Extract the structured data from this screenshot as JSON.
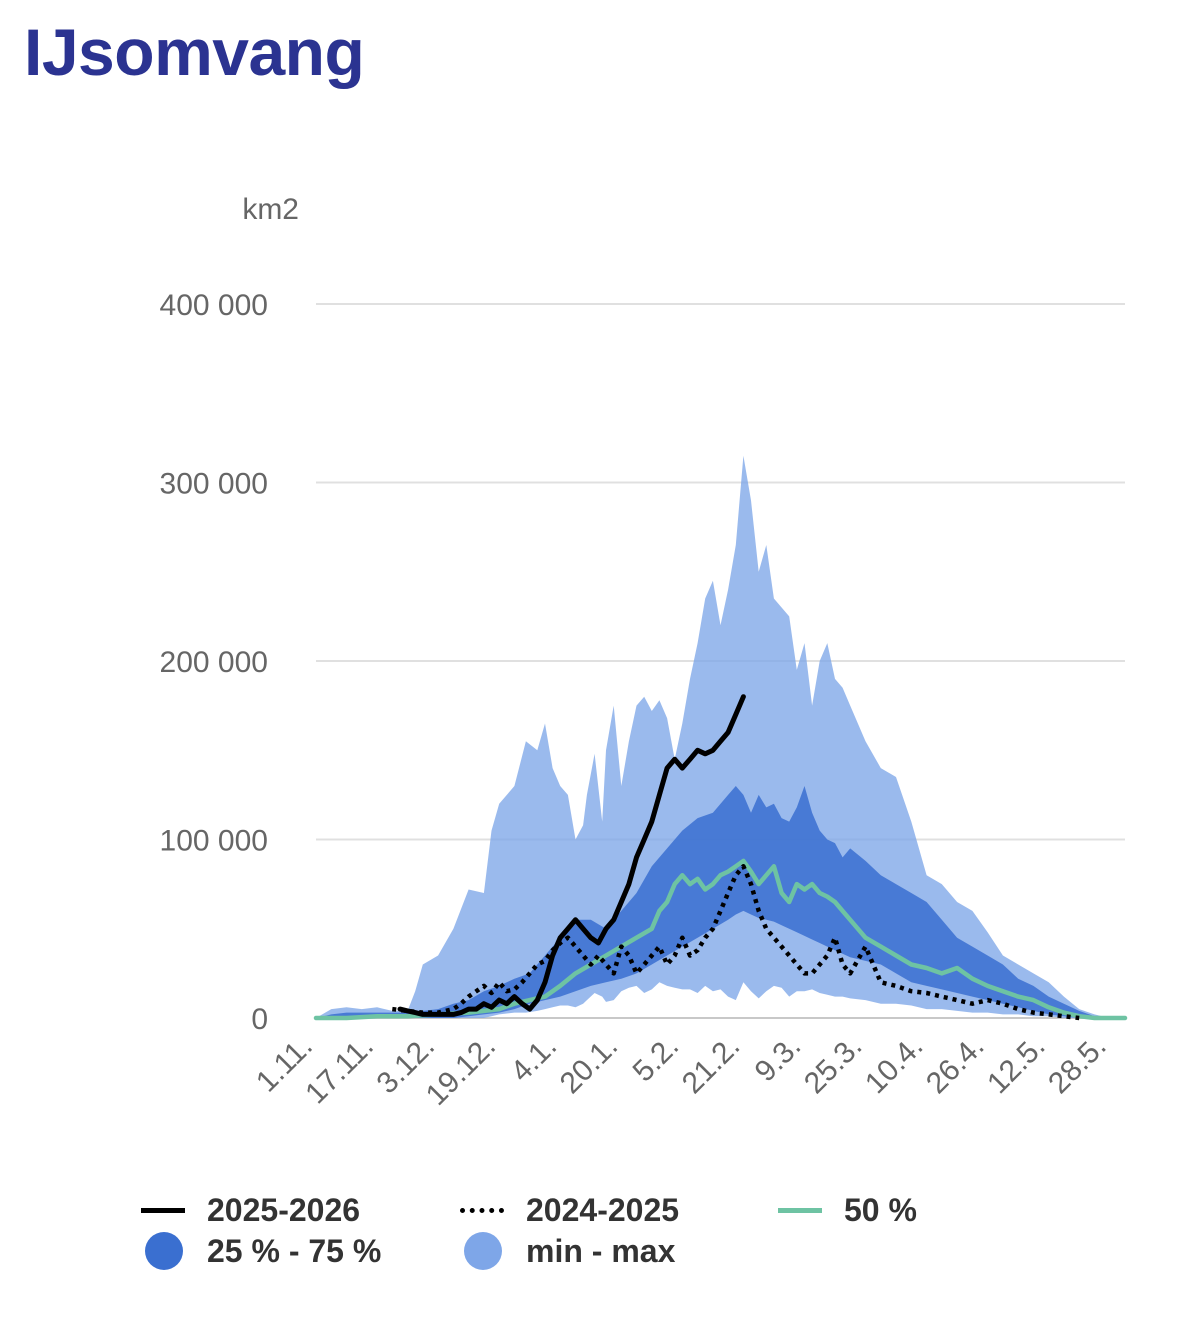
{
  "title": "IJsomvang",
  "colors": {
    "minmax": "#7ea6e8",
    "iqr": "#3a6fd0",
    "median": "#6ec3a3",
    "current": "#000000",
    "previous": "#000000",
    "grid": "#e0e0e0",
    "axis_text": "#666666",
    "title": "#2b3391"
  },
  "legend": {
    "current": "2025-2026",
    "previous": "2024-2025",
    "median": "50 %",
    "iqr": "25 % - 75 %",
    "minmax": "min - max"
  },
  "chart_data": {
    "type": "area",
    "ylabel": "km2",
    "ylim": [
      0,
      400000
    ],
    "yticks": [
      0,
      100000,
      200000,
      300000,
      400000
    ],
    "ytick_labels": [
      "0",
      "100 000",
      "200 000",
      "300 000",
      "400 000"
    ],
    "xlim": [
      0,
      212
    ],
    "xticks": [
      0,
      16,
      32,
      48,
      64,
      80,
      96,
      112,
      128,
      144,
      160,
      176,
      192,
      208
    ],
    "xtick_labels": [
      "1.11.",
      "17.11.",
      "3.12.",
      "19.12.",
      "4.1.",
      "20.1.",
      "5.2.",
      "21.2.",
      "9.3.",
      "25.3.",
      "10.4.",
      "26.4.",
      "12.5.",
      "28.5."
    ],
    "grid": true,
    "x_note": "x values are days counted from 1.11.",
    "series": [
      {
        "name": "min - max",
        "kind": "band",
        "x": [
          0,
          4,
          8,
          12,
          16,
          20,
          24,
          26,
          28,
          32,
          36,
          40,
          44,
          46,
          48,
          52,
          55,
          58,
          60,
          62,
          64,
          66,
          68,
          70,
          71,
          73,
          75,
          76,
          78,
          80,
          82,
          84,
          86,
          88,
          90,
          92,
          94,
          96,
          98,
          100,
          102,
          104,
          106,
          108,
          110,
          112,
          114,
          116,
          118,
          120,
          122,
          124,
          126,
          128,
          130,
          132,
          134,
          136,
          138,
          140,
          144,
          148,
          152,
          156,
          160,
          164,
          168,
          172,
          176,
          180,
          184,
          188,
          192,
          196,
          200,
          204,
          206,
          208,
          212
        ],
        "low": [
          0,
          0,
          0,
          0,
          0,
          0,
          0,
          0,
          0,
          0,
          0,
          0,
          0,
          1000,
          2000,
          3000,
          3000,
          4000,
          5000,
          6000,
          7000,
          7000,
          6000,
          8000,
          10000,
          14000,
          12000,
          9000,
          10000,
          15000,
          17000,
          18000,
          14000,
          16000,
          20000,
          18000,
          17000,
          16000,
          16000,
          14000,
          18000,
          15000,
          16000,
          12000,
          10000,
          20000,
          15000,
          11000,
          15000,
          18000,
          17000,
          12000,
          15000,
          15000,
          16000,
          14000,
          13000,
          12000,
          12000,
          11000,
          10000,
          8000,
          8000,
          7000,
          5000,
          5000,
          4000,
          3000,
          3000,
          2000,
          2000,
          1000,
          1000,
          0,
          0,
          0,
          0,
          0,
          0
        ],
        "high": [
          0,
          5000,
          6000,
          5000,
          6000,
          4000,
          4000,
          15000,
          30000,
          35000,
          50000,
          72000,
          70000,
          105000,
          120000,
          130000,
          155000,
          150000,
          165000,
          140000,
          130000,
          125000,
          100000,
          108000,
          125000,
          148000,
          110000,
          150000,
          175000,
          130000,
          155000,
          175000,
          180000,
          172000,
          178000,
          168000,
          145000,
          165000,
          190000,
          210000,
          235000,
          245000,
          220000,
          240000,
          265000,
          315000,
          290000,
          250000,
          265000,
          235000,
          230000,
          225000,
          195000,
          210000,
          175000,
          200000,
          210000,
          190000,
          185000,
          175000,
          155000,
          140000,
          135000,
          110000,
          80000,
          75000,
          65000,
          60000,
          48000,
          35000,
          30000,
          25000,
          20000,
          12000,
          5000,
          2000,
          1000,
          0,
          0
        ]
      },
      {
        "name": "25 % - 75 %",
        "kind": "band",
        "x": [
          0,
          4,
          8,
          12,
          16,
          20,
          24,
          28,
          32,
          36,
          40,
          44,
          48,
          52,
          56,
          60,
          64,
          68,
          72,
          76,
          80,
          84,
          88,
          92,
          96,
          100,
          104,
          108,
          110,
          112,
          114,
          116,
          118,
          120,
          122,
          124,
          126,
          128,
          130,
          132,
          134,
          136,
          138,
          140,
          144,
          148,
          152,
          156,
          160,
          164,
          168,
          172,
          176,
          180,
          184,
          188,
          192,
          196,
          200,
          204,
          208,
          212
        ],
        "low": [
          0,
          0,
          0,
          0,
          0,
          0,
          0,
          0,
          0,
          0,
          1000,
          2000,
          3000,
          5000,
          8000,
          10000,
          12000,
          15000,
          18000,
          20000,
          22000,
          25000,
          30000,
          35000,
          40000,
          45000,
          50000,
          55000,
          58000,
          60000,
          58000,
          56000,
          55000,
          54000,
          52000,
          50000,
          48000,
          46000,
          44000,
          42000,
          40000,
          38000,
          36000,
          34000,
          32000,
          30000,
          25000,
          20000,
          18000,
          16000,
          14000,
          12000,
          10000,
          8000,
          6000,
          4000,
          2000,
          1000,
          0,
          0,
          0,
          0
        ],
        "high": [
          0,
          2000,
          3000,
          3000,
          3000,
          3000,
          3000,
          4000,
          5000,
          8000,
          10000,
          15000,
          18000,
          22000,
          25000,
          35000,
          45000,
          55000,
          55000,
          50000,
          60000,
          70000,
          85000,
          95000,
          105000,
          112000,
          115000,
          125000,
          130000,
          125000,
          115000,
          125000,
          118000,
          120000,
          112000,
          110000,
          118000,
          130000,
          115000,
          105000,
          100000,
          98000,
          90000,
          95000,
          88000,
          80000,
          75000,
          70000,
          65000,
          55000,
          45000,
          40000,
          35000,
          30000,
          22000,
          18000,
          12000,
          8000,
          4000,
          1000,
          0,
          0
        ]
      },
      {
        "name": "50 %",
        "kind": "line",
        "x": [
          0,
          8,
          16,
          24,
          32,
          40,
          48,
          52,
          56,
          60,
          64,
          68,
          72,
          76,
          80,
          84,
          88,
          90,
          92,
          94,
          96,
          98,
          100,
          102,
          104,
          106,
          108,
          110,
          112,
          114,
          116,
          118,
          120,
          122,
          124,
          126,
          128,
          130,
          132,
          134,
          136,
          138,
          140,
          144,
          148,
          152,
          156,
          160,
          164,
          168,
          172,
          176,
          180,
          184,
          188,
          192,
          196,
          200,
          204,
          208,
          212
        ],
        "y": [
          0,
          0,
          1000,
          1000,
          2000,
          3000,
          5000,
          8000,
          10000,
          12000,
          18000,
          25000,
          30000,
          35000,
          40000,
          45000,
          50000,
          60000,
          65000,
          75000,
          80000,
          75000,
          78000,
          72000,
          75000,
          80000,
          82000,
          85000,
          88000,
          82000,
          75000,
          80000,
          85000,
          70000,
          65000,
          75000,
          72000,
          75000,
          70000,
          68000,
          65000,
          60000,
          55000,
          45000,
          40000,
          35000,
          30000,
          28000,
          25000,
          28000,
          22000,
          18000,
          15000,
          12000,
          10000,
          6000,
          3000,
          1000,
          0,
          0,
          0
        ]
      },
      {
        "name": "2024-2025",
        "kind": "dotted",
        "x": [
          20,
          24,
          28,
          32,
          36,
          38,
          40,
          42,
          44,
          46,
          48,
          50,
          52,
          54,
          56,
          58,
          60,
          62,
          64,
          66,
          68,
          70,
          72,
          74,
          76,
          78,
          80,
          82,
          84,
          86,
          88,
          90,
          92,
          94,
          96,
          98,
          100,
          102,
          104,
          106,
          108,
          110,
          112,
          114,
          116,
          118,
          120,
          122,
          124,
          126,
          128,
          130,
          132,
          134,
          136,
          138,
          140,
          144,
          148,
          152,
          156,
          160,
          164,
          168,
          172,
          176,
          180,
          184,
          188,
          192,
          196,
          200
        ],
        "y": [
          5000,
          4000,
          3000,
          3000,
          5000,
          8000,
          12000,
          15000,
          18000,
          14000,
          20000,
          15000,
          16000,
          20000,
          25000,
          30000,
          32000,
          38000,
          42000,
          45000,
          40000,
          35000,
          30000,
          35000,
          30000,
          25000,
          40000,
          35000,
          25000,
          30000,
          35000,
          40000,
          30000,
          35000,
          45000,
          35000,
          38000,
          45000,
          50000,
          60000,
          70000,
          80000,
          85000,
          75000,
          60000,
          50000,
          45000,
          40000,
          35000,
          30000,
          25000,
          25000,
          30000,
          35000,
          45000,
          30000,
          25000,
          40000,
          20000,
          18000,
          15000,
          14000,
          12000,
          10000,
          8000,
          10000,
          8000,
          5000,
          3000,
          2000,
          1000,
          0
        ]
      },
      {
        "name": "2025-2026",
        "kind": "line",
        "x": [
          22,
          24,
          26,
          28,
          30,
          32,
          34,
          36,
          38,
          40,
          42,
          44,
          46,
          48,
          50,
          52,
          54,
          56,
          58,
          60,
          62,
          64,
          66,
          68,
          70,
          72,
          74,
          76,
          78,
          80,
          82,
          84,
          86,
          88,
          90,
          92,
          94,
          96,
          98,
          100,
          102,
          104,
          106,
          108,
          110,
          112
        ],
        "y": [
          5000,
          4000,
          3000,
          2000,
          2000,
          2000,
          2000,
          2000,
          3000,
          5000,
          5000,
          8000,
          6000,
          10000,
          8000,
          12000,
          8000,
          5000,
          10000,
          20000,
          35000,
          45000,
          50000,
          55000,
          50000,
          45000,
          42000,
          50000,
          55000,
          65000,
          75000,
          90000,
          100000,
          110000,
          125000,
          140000,
          145000,
          140000,
          145000,
          150000,
          148000,
          150000,
          155000,
          160000,
          170000,
          180000
        ]
      }
    ]
  }
}
